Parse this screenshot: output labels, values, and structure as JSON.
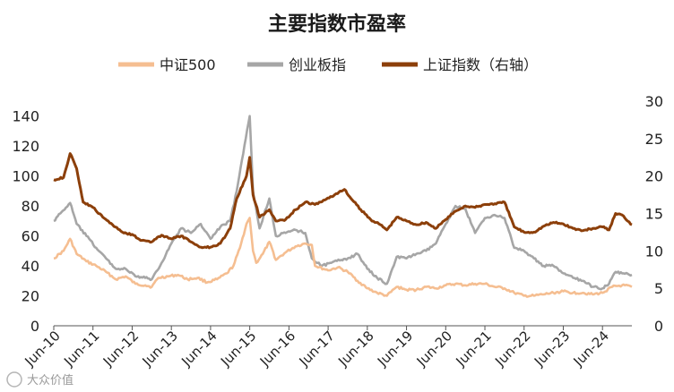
{
  "chart_data": {
    "type": "line",
    "title": "主要指数市盈率",
    "legend_position": "top",
    "grid": false,
    "x_start": "2010-06",
    "x_end": "2025-03",
    "x_ticks": [
      "Jun-10",
      "Jun-11",
      "Jun-12",
      "Jun-13",
      "Jun-14",
      "Jun-15",
      "Jun-16",
      "Jun-17",
      "Jun-18",
      "Jun-19",
      "Jun-20",
      "Jun-21",
      "Jun-22",
      "Jun-23",
      "Jun-24"
    ],
    "y_left": {
      "ticks": [
        "0",
        "20",
        "40",
        "60",
        "80",
        "100",
        "120",
        "140"
      ],
      "range": [
        0,
        150
      ]
    },
    "y_right": {
      "ticks": [
        "0",
        "5",
        "10",
        "15",
        "20",
        "25",
        "30"
      ],
      "range": [
        0,
        30
      ]
    },
    "series": [
      {
        "name": "中证500",
        "axis": "left",
        "color": "#F5BE91",
        "points": [
          [
            "2010-06",
            45
          ],
          [
            "2010-09",
            50
          ],
          [
            "2010-11",
            58
          ],
          [
            "2011-01",
            48
          ],
          [
            "2011-04",
            43
          ],
          [
            "2011-07",
            40
          ],
          [
            "2011-10",
            36
          ],
          [
            "2012-01",
            31
          ],
          [
            "2012-04",
            33
          ],
          [
            "2012-07",
            28
          ],
          [
            "2012-10",
            27
          ],
          [
            "2012-12",
            26
          ],
          [
            "2013-02",
            32
          ],
          [
            "2013-05",
            33
          ],
          [
            "2013-08",
            34
          ],
          [
            "2013-11",
            31
          ],
          [
            "2014-02",
            32
          ],
          [
            "2014-05",
            29
          ],
          [
            "2014-08",
            31
          ],
          [
            "2014-11",
            35
          ],
          [
            "2015-01",
            40
          ],
          [
            "2015-03",
            52
          ],
          [
            "2015-05",
            68
          ],
          [
            "2015-06",
            72
          ],
          [
            "2015-07",
            50
          ],
          [
            "2015-08",
            42
          ],
          [
            "2015-10",
            48
          ],
          [
            "2015-12",
            56
          ],
          [
            "2016-02",
            44
          ],
          [
            "2016-05",
            49
          ],
          [
            "2016-08",
            53
          ],
          [
            "2016-11",
            55
          ],
          [
            "2017-01",
            54
          ],
          [
            "2017-02",
            40
          ],
          [
            "2017-06",
            37
          ],
          [
            "2017-09",
            39
          ],
          [
            "2017-12",
            36
          ],
          [
            "2018-03",
            30
          ],
          [
            "2018-06",
            25
          ],
          [
            "2018-09",
            22
          ],
          [
            "2018-12",
            20
          ],
          [
            "2019-03",
            26
          ],
          [
            "2019-06",
            24
          ],
          [
            "2019-09",
            24
          ],
          [
            "2019-12",
            26
          ],
          [
            "2020-03",
            25
          ],
          [
            "2020-06",
            27
          ],
          [
            "2020-09",
            28
          ],
          [
            "2020-12",
            27
          ],
          [
            "2021-03",
            28
          ],
          [
            "2021-06",
            28
          ],
          [
            "2021-09",
            26
          ],
          [
            "2021-12",
            25
          ],
          [
            "2022-03",
            22
          ],
          [
            "2022-06",
            20
          ],
          [
            "2022-09",
            20
          ],
          [
            "2022-12",
            21
          ],
          [
            "2023-03",
            22
          ],
          [
            "2023-06",
            23
          ],
          [
            "2023-09",
            22
          ],
          [
            "2023-12",
            22
          ],
          [
            "2024-03",
            21
          ],
          [
            "2024-06",
            22
          ],
          [
            "2024-09",
            26
          ],
          [
            "2024-12",
            27
          ],
          [
            "2025-03",
            26
          ]
        ]
      },
      {
        "name": "创业板指",
        "axis": "left",
        "color": "#A6A6A6",
        "points": [
          [
            "2010-06",
            70
          ],
          [
            "2010-08",
            75
          ],
          [
            "2010-11",
            82
          ],
          [
            "2011-01",
            68
          ],
          [
            "2011-04",
            60
          ],
          [
            "2011-07",
            52
          ],
          [
            "2011-10",
            45
          ],
          [
            "2012-01",
            38
          ],
          [
            "2012-04",
            38
          ],
          [
            "2012-07",
            33
          ],
          [
            "2012-10",
            32
          ],
          [
            "2012-12",
            31
          ],
          [
            "2013-03",
            42
          ],
          [
            "2013-06",
            55
          ],
          [
            "2013-09",
            65
          ],
          [
            "2013-12",
            62
          ],
          [
            "2014-03",
            68
          ],
          [
            "2014-06",
            58
          ],
          [
            "2014-09",
            66
          ],
          [
            "2014-12",
            70
          ],
          [
            "2015-02",
            90
          ],
          [
            "2015-04",
            115
          ],
          [
            "2015-06",
            140
          ],
          [
            "2015-07",
            90
          ],
          [
            "2015-09",
            65
          ],
          [
            "2015-12",
            85
          ],
          [
            "2016-02",
            60
          ],
          [
            "2016-05",
            62
          ],
          [
            "2016-08",
            64
          ],
          [
            "2016-11",
            62
          ],
          [
            "2017-01",
            45
          ],
          [
            "2017-04",
            40
          ],
          [
            "2017-07",
            42
          ],
          [
            "2017-10",
            44
          ],
          [
            "2017-12",
            45
          ],
          [
            "2018-03",
            48
          ],
          [
            "2018-06",
            38
          ],
          [
            "2018-09",
            32
          ],
          [
            "2018-12",
            28
          ],
          [
            "2019-03",
            46
          ],
          [
            "2019-06",
            45
          ],
          [
            "2019-09",
            48
          ],
          [
            "2019-12",
            50
          ],
          [
            "2020-03",
            55
          ],
          [
            "2020-06",
            68
          ],
          [
            "2020-09",
            80
          ],
          [
            "2020-12",
            78
          ],
          [
            "2021-03",
            62
          ],
          [
            "2021-06",
            72
          ],
          [
            "2021-09",
            74
          ],
          [
            "2021-12",
            72
          ],
          [
            "2022-03",
            52
          ],
          [
            "2022-06",
            50
          ],
          [
            "2022-09",
            45
          ],
          [
            "2022-12",
            40
          ],
          [
            "2023-03",
            40
          ],
          [
            "2023-06",
            35
          ],
          [
            "2023-09",
            32
          ],
          [
            "2023-12",
            30
          ],
          [
            "2024-03",
            26
          ],
          [
            "2024-06",
            25
          ],
          [
            "2024-08",
            28
          ],
          [
            "2024-10",
            36
          ],
          [
            "2024-12",
            35
          ],
          [
            "2025-03",
            34
          ]
        ]
      },
      {
        "name": "上证指数（右轴）",
        "axis": "right",
        "color": "#8C3F0A",
        "points": [
          [
            "2010-06",
            19.5
          ],
          [
            "2010-09",
            19.8
          ],
          [
            "2010-11",
            23
          ],
          [
            "2011-01",
            21
          ],
          [
            "2011-03",
            16.5
          ],
          [
            "2011-06",
            15.8
          ],
          [
            "2011-09",
            14.5
          ],
          [
            "2011-12",
            13.5
          ],
          [
            "2012-03",
            12.5
          ],
          [
            "2012-06",
            12.2
          ],
          [
            "2012-09",
            11.4
          ],
          [
            "2012-12",
            11.2
          ],
          [
            "2013-03",
            12.1
          ],
          [
            "2013-06",
            11.6
          ],
          [
            "2013-09",
            12
          ],
          [
            "2013-12",
            11.2
          ],
          [
            "2014-03",
            10.5
          ],
          [
            "2014-06",
            10.5
          ],
          [
            "2014-09",
            11
          ],
          [
            "2014-12",
            13
          ],
          [
            "2015-02",
            17
          ],
          [
            "2015-05",
            20
          ],
          [
            "2015-06",
            22.5
          ],
          [
            "2015-07",
            17.5
          ],
          [
            "2015-09",
            14.5
          ],
          [
            "2015-12",
            15.5
          ],
          [
            "2016-02",
            14
          ],
          [
            "2016-05",
            14.2
          ],
          [
            "2016-08",
            15.5
          ],
          [
            "2016-11",
            16.5
          ],
          [
            "2017-02",
            16.2
          ],
          [
            "2017-05",
            16.8
          ],
          [
            "2017-08",
            17.5
          ],
          [
            "2017-11",
            18.2
          ],
          [
            "2018-01",
            17
          ],
          [
            "2018-04",
            15.5
          ],
          [
            "2018-07",
            14.2
          ],
          [
            "2018-10",
            13.5
          ],
          [
            "2018-12",
            12.8
          ],
          [
            "2019-03",
            14.5
          ],
          [
            "2019-06",
            14
          ],
          [
            "2019-09",
            13.5
          ],
          [
            "2019-12",
            13.8
          ],
          [
            "2020-03",
            13
          ],
          [
            "2020-06",
            14.2
          ],
          [
            "2020-09",
            15.3
          ],
          [
            "2020-12",
            16
          ],
          [
            "2021-03",
            15.8
          ],
          [
            "2021-06",
            16.2
          ],
          [
            "2021-09",
            16.3
          ],
          [
            "2021-12",
            16.5
          ],
          [
            "2022-03",
            13.2
          ],
          [
            "2022-06",
            12.5
          ],
          [
            "2022-09",
            12.5
          ],
          [
            "2022-12",
            13.3
          ],
          [
            "2023-03",
            13.8
          ],
          [
            "2023-06",
            13.6
          ],
          [
            "2023-09",
            13
          ],
          [
            "2023-12",
            12.7
          ],
          [
            "2024-03",
            13
          ],
          [
            "2024-06",
            13.2
          ],
          [
            "2024-08",
            12.8
          ],
          [
            "2024-10",
            15
          ],
          [
            "2024-12",
            14.8
          ],
          [
            "2025-03",
            13.5
          ]
        ]
      }
    ]
  },
  "watermark": "大众价值"
}
